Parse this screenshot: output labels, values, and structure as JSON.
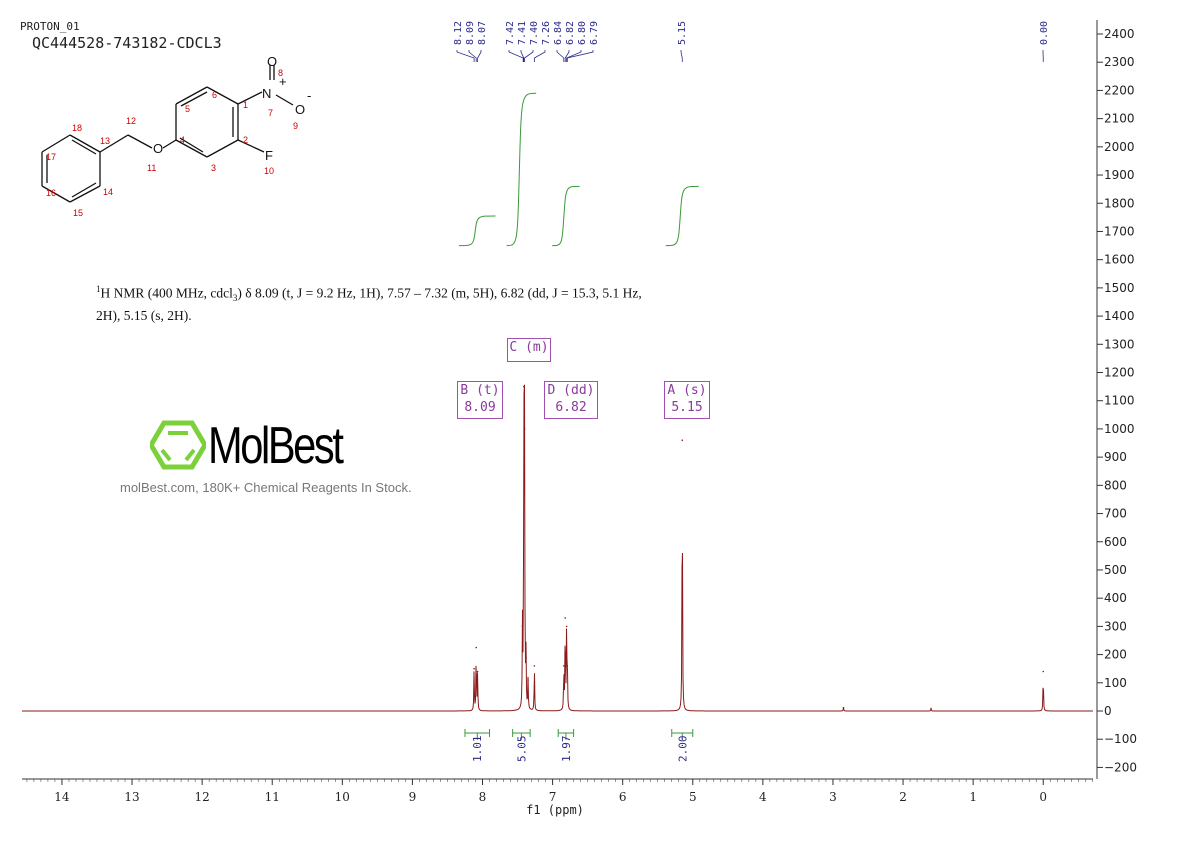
{
  "header": {
    "experiment": "PROTON_01",
    "sample": "QC444528-743182-CDCL3"
  },
  "description": {
    "line1_pre": "H NMR (400 MHz, cdcl",
    "line1_post": ") δ 8.09 (t, J = 9.2 Hz, 1H), 7.57 – 7.32 (m, 5H), 6.82 (dd, J = 15.3, 5.1 Hz,",
    "line2": "2H), 5.15 (s, 2H)."
  },
  "multiplets": [
    {
      "label": "B (t)",
      "shift": "8.09"
    },
    {
      "label": "C (m)",
      "shift": ""
    },
    {
      "label": "D (dd)",
      "shift": "6.82"
    },
    {
      "label": "A (s)",
      "shift": "5.15"
    }
  ],
  "watermark": {
    "brand": "MolBest",
    "tagline": "molBest.com, 180K+ Chemical Reagents In Stock."
  },
  "structure": {
    "atoms": [
      "1",
      "2",
      "3",
      "4",
      "5",
      "6",
      "7",
      "8",
      "9",
      "10",
      "11",
      "12",
      "13",
      "14",
      "15",
      "16",
      "17",
      "18"
    ],
    "symbols": {
      "N": "N",
      "O": "O",
      "F": "F",
      "plus": "+",
      "minus": "-"
    }
  },
  "chart_data": {
    "type": "line",
    "title": "",
    "xlabel": "f1 (ppm)",
    "ylabel": "",
    "xlim": [
      14.57,
      -0.71
    ],
    "ylim": [
      -250,
      2480
    ],
    "xticks": [
      14,
      13,
      12,
      11,
      10,
      9,
      8,
      7,
      6,
      5,
      4,
      3,
      2,
      1,
      0
    ],
    "yticks": [
      -200,
      -100,
      0,
      100,
      200,
      300,
      400,
      500,
      600,
      700,
      800,
      900,
      1000,
      1100,
      1200,
      1300,
      1400,
      1500,
      1600,
      1700,
      1800,
      1900,
      2000,
      2100,
      2200,
      2300,
      2400
    ],
    "peak_labels": [
      "8.12",
      "8.09",
      "8.07",
      "7.42",
      "7.41",
      "7.40",
      "7.26",
      "6.84",
      "6.82",
      "6.80",
      "6.79",
      "5.15",
      "0.00"
    ],
    "peaks": [
      {
        "ppm": 8.12,
        "intensity": 150
      },
      {
        "ppm": 8.09,
        "intensity": 225
      },
      {
        "ppm": 8.07,
        "intensity": 140
      },
      {
        "ppm": 7.43,
        "intensity": 300
      },
      {
        "ppm": 7.41,
        "intensity": 1150
      },
      {
        "ppm": 7.4,
        "intensity": 1000
      },
      {
        "ppm": 7.38,
        "intensity": 190
      },
      {
        "ppm": 7.35,
        "intensity": 110
      },
      {
        "ppm": 7.26,
        "intensity": 160
      },
      {
        "ppm": 6.84,
        "intensity": 160
      },
      {
        "ppm": 6.82,
        "intensity": 330
      },
      {
        "ppm": 6.8,
        "intensity": 300
      },
      {
        "ppm": 6.79,
        "intensity": 160
      },
      {
        "ppm": 5.15,
        "intensity": 960
      },
      {
        "ppm": 2.85,
        "intensity": 12
      },
      {
        "ppm": 1.6,
        "intensity": 8
      },
      {
        "ppm": 0.0,
        "intensity": 140
      }
    ],
    "integrals": [
      {
        "from": 8.25,
        "to": 7.9,
        "value": "1.01"
      },
      {
        "from": 7.57,
        "to": 7.32,
        "value": "5.05"
      },
      {
        "from": 6.92,
        "to": 6.7,
        "value": "1.97"
      },
      {
        "from": 5.3,
        "to": 5.0,
        "value": "2.00"
      }
    ],
    "colors": {
      "spectrum": "#8b1a1a",
      "integral": "#3a9a3a",
      "label": "#2b2b8a",
      "axis": "#333333"
    }
  }
}
